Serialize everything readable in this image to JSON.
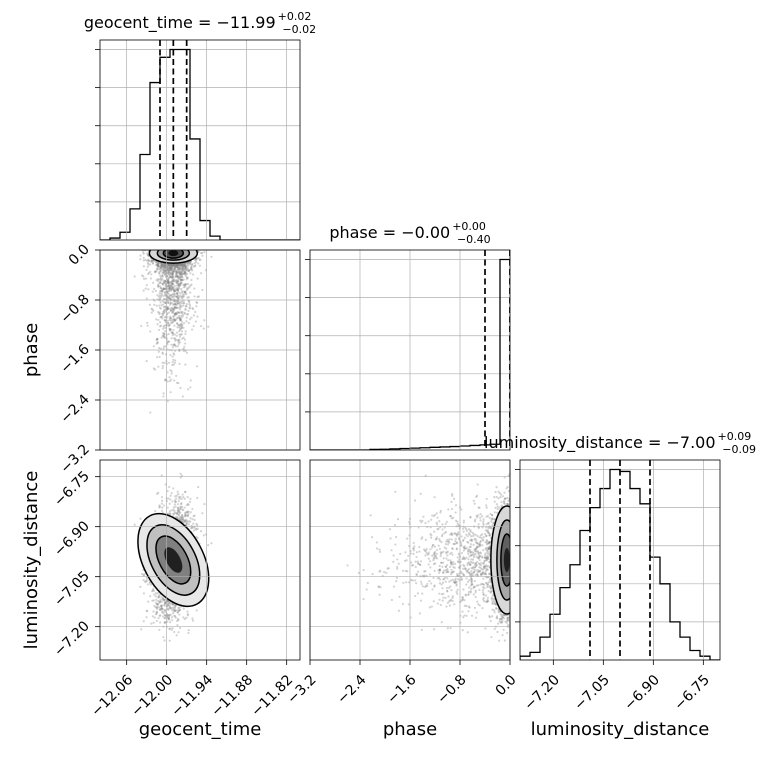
{
  "chart_data": {
    "type": "corner",
    "parameters": [
      "geocent_time",
      "phase",
      "luminosity_distance"
    ],
    "titles": [
      {
        "param": "geocent_time",
        "prefix": "geocent_time = ",
        "median": "−11.99",
        "upper": "+0.02",
        "lower": "−0.02"
      },
      {
        "param": "phase",
        "prefix": "phase = ",
        "median": "−0.00",
        "upper": "+0.00",
        "lower": "−0.40"
      },
      {
        "param": "luminosity_distance",
        "prefix": "luminosity_distance = ",
        "median": "−7.00",
        "upper": "+0.09",
        "lower": "−0.09"
      }
    ],
    "axis_labels": {
      "geocent_time": "geocent_time",
      "phase": "phase",
      "luminosity_distance": "luminosity_distance"
    },
    "ranges": {
      "geocent_time": [
        -12.1,
        -11.8
      ],
      "phase": [
        -3.2,
        0.0
      ],
      "luminosity_distance": [
        -7.3,
        -6.7
      ]
    },
    "ticks": {
      "geocent_time": {
        "values": [
          -12.06,
          -12.0,
          -11.94,
          -11.88,
          -11.82
        ],
        "labels": [
          "−12.06",
          "−12.00",
          "−11.94",
          "−11.88",
          "−11.82"
        ]
      },
      "phase": {
        "values": [
          -3.2,
          -2.4,
          -1.6,
          -0.8,
          0.0
        ],
        "labels": [
          "−3.2",
          "−2.4",
          "−1.6",
          "−0.8",
          "0.0"
        ]
      },
      "luminosity_distance": {
        "values": [
          -7.2,
          -7.05,
          -6.9,
          -6.75
        ],
        "labels": [
          "−7.20",
          "−7.05",
          "−6.90",
          "−6.75"
        ]
      }
    },
    "quantiles": {
      "geocent_time": [
        -12.01,
        -11.99,
        -11.97
      ],
      "phase": [
        -0.4,
        -0.0,
        0.0
      ],
      "luminosity_distance": [
        -7.09,
        -7.0,
        -6.91
      ]
    },
    "histograms": {
      "geocent_time": {
        "bin_edges": [
          -12.1,
          -12.085,
          -12.07,
          -12.055,
          -12.04,
          -12.025,
          -12.01,
          -11.995,
          -11.98,
          -11.965,
          -11.95,
          -11.935,
          -11.92,
          -11.905,
          -11.89,
          -11.875,
          -11.86,
          -11.845,
          -11.83,
          -11.815,
          -11.8
        ],
        "counts": [
          0,
          1,
          4,
          16,
          44,
          81,
          94,
          98,
          98,
          52,
          10,
          2,
          0,
          0,
          0,
          0,
          0,
          0,
          0,
          0
        ]
      },
      "phase": {
        "bin_edges": [
          -3.2,
          -3.04,
          -2.88,
          -2.72,
          -2.56,
          -2.4,
          -2.24,
          -2.08,
          -1.92,
          -1.76,
          -1.6,
          -1.44,
          -1.28,
          -1.12,
          -0.96,
          -0.8,
          -0.64,
          -0.48,
          -0.32,
          -0.16,
          0.0
        ],
        "counts": [
          0,
          0,
          0,
          0,
          0,
          0,
          0.3,
          0.4,
          0.6,
          0.8,
          1.0,
          1.2,
          1.4,
          1.6,
          1.8,
          2.1,
          2.4,
          2.7,
          3.0,
          100
        ]
      },
      "luminosity_distance": {
        "bin_edges": [
          -7.3,
          -7.27,
          -7.24,
          -7.21,
          -7.18,
          -7.15,
          -7.12,
          -7.09,
          -7.06,
          -7.03,
          -7.0,
          -6.97,
          -6.94,
          -6.91,
          -6.88,
          -6.85,
          -6.82,
          -6.79,
          -6.76,
          -6.73,
          -6.7
        ],
        "counts": [
          2,
          4,
          12,
          24,
          38,
          50,
          68,
          80,
          90,
          100,
          99,
          90,
          82,
          54,
          40,
          20,
          12,
          5,
          2,
          0
        ]
      }
    },
    "scatter_colors": {
      "points": "#808080",
      "contours": "#000000",
      "hist": "#000000",
      "grid": "#b0b0b0"
    }
  }
}
